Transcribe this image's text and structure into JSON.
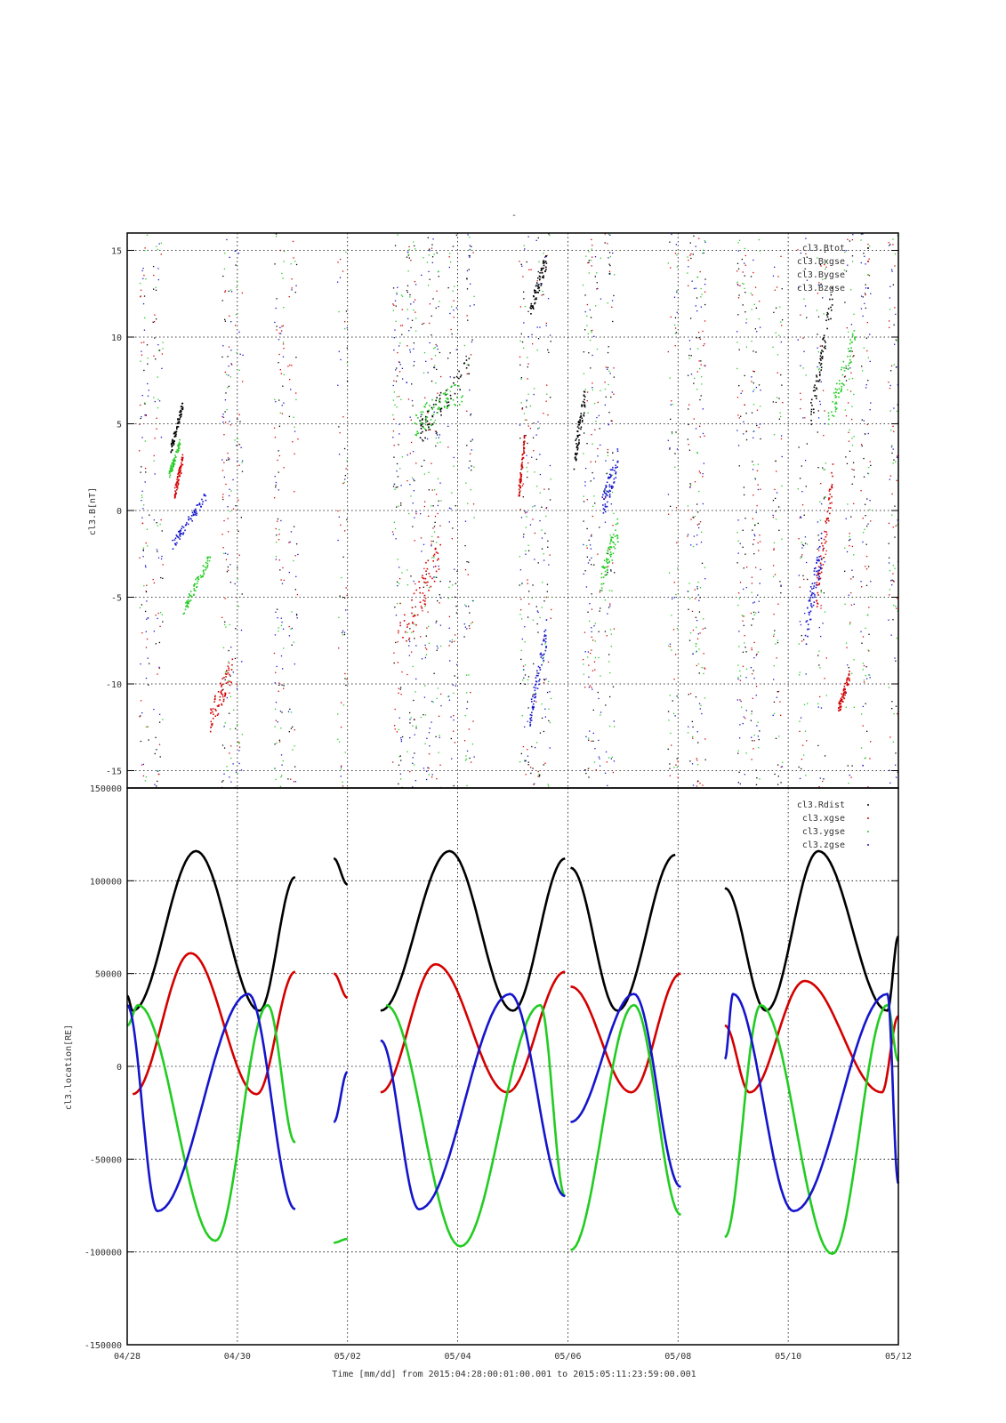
{
  "figure": {
    "title": "-",
    "xlabel": "Time [mm/dd]  from 2015:04:28:00:01:00.001  to  2015:05:11:23:59:00.001",
    "x_tick_labels": [
      "04/28",
      "04/30",
      "05/02",
      "05/04",
      "05/06",
      "05/08",
      "05/10",
      "05/12"
    ]
  },
  "colors": {
    "black": "#000000",
    "red": "#d40000",
    "green": "#22cc22",
    "blue": "#1515cc",
    "grid": "#000000",
    "frame": "#000000"
  },
  "chart_data": [
    {
      "type": "scatter",
      "title": "-",
      "ylabel": "cl3.B[nT]",
      "xlabel": "",
      "xlim": [
        0,
        14
      ],
      "x_unit": "days from 04/28",
      "ylim": [
        -16,
        16
      ],
      "yticks": [
        -15,
        -10,
        -5,
        0,
        5,
        10,
        15
      ],
      "ytick_labels": [
        "-15",
        "-10",
        "-5",
        "0",
        "5",
        "10",
        "15"
      ],
      "grid": true,
      "legend_position": "top-right",
      "series": [
        {
          "name": "cl3.Btot",
          "color": "black",
          "values_note": "",
          "segments": [
            [
              0.78,
              1.0,
              3.5,
              6.2,
              0.6
            ],
            [
              5.3,
              6.2,
              4.5,
              8.5,
              1.5
            ],
            [
              8.1,
              8.3,
              3.0,
              6.5,
              1.5
            ],
            [
              12.4,
              12.8,
              5.5,
              12.5,
              1.5
            ],
            [
              7.3,
              7.6,
              11.5,
              14.5,
              1.0
            ]
          ]
        },
        {
          "name": "cl3.Bxgse",
          "color": "red",
          "segments": [
            [
              0.85,
              1.0,
              1.0,
              3.0,
              0.8
            ],
            [
              1.5,
              1.9,
              -12.0,
              -9.0,
              1.5
            ],
            [
              4.9,
              5.7,
              -8.0,
              -2.0,
              2.5
            ],
            [
              7.1,
              7.2,
              1.0,
              4.0,
              1.0
            ],
            [
              12.5,
              12.8,
              -5.0,
              2.0,
              2.0
            ],
            [
              12.9,
              13.1,
              -11.5,
              -9.5,
              0.8
            ]
          ]
        },
        {
          "name": "cl3.Bygse",
          "color": "green",
          "segments": [
            [
              0.75,
              0.95,
              2.0,
              4.0,
              0.6
            ],
            [
              1.0,
              1.5,
              -5.8,
              -2.5,
              0.7
            ],
            [
              5.2,
              6.1,
              5.0,
              7.0,
              1.5
            ],
            [
              8.6,
              8.9,
              -4.0,
              -1.0,
              1.5
            ],
            [
              12.7,
              13.2,
              5.0,
              10.0,
              1.5
            ]
          ]
        },
        {
          "name": "cl3.Bzgse",
          "color": "blue",
          "segments": [
            [
              0.8,
              1.45,
              -2.0,
              1.0,
              0.6
            ],
            [
              7.3,
              7.6,
              -12.0,
              -7.0,
              1.5
            ],
            [
              8.6,
              8.9,
              0.0,
              3.0,
              1.5
            ],
            [
              12.3,
              12.6,
              -7.0,
              -2.0,
              2.0
            ]
          ]
        }
      ]
    },
    {
      "type": "scatter",
      "title": "",
      "ylabel": "cl3.location[RE]",
      "xlabel": "Time [mm/dd]  from 2015:04:28:00:01:00.001  to  2015:05:11:23:59:00.001",
      "xlim": [
        0,
        14
      ],
      "x_unit": "days from 04/28",
      "ylim": [
        -150000,
        150000
      ],
      "yticks": [
        -150000,
        -100000,
        -50000,
        0,
        50000,
        100000,
        150000
      ],
      "ytick_labels": [
        "-150000",
        "-100000",
        "-50000",
        "0",
        "50000",
        "100000",
        "150000"
      ],
      "grid": true,
      "legend_position": "top-right",
      "orbit_period_days": 2.7,
      "coverage_intervals": [
        [
          0.0,
          3.05
        ],
        [
          3.75,
          4.0
        ],
        [
          4.6,
          7.95
        ],
        [
          8.05,
          10.05
        ],
        [
          10.85,
          14.0
        ]
      ],
      "series": [
        {
          "name": "cl3.Rdist",
          "color": "black",
          "max": 116000,
          "min": 30000
        },
        {
          "name": "cl3.xgse",
          "color": "red",
          "max": 61000,
          "min": -15000
        },
        {
          "name": "cl3.ygse",
          "color": "green",
          "max": 33000,
          "min": -101000
        },
        {
          "name": "cl3.zgse",
          "color": "blue",
          "max": 39000,
          "min": -78000
        }
      ],
      "sample_points": {
        "cl3.Rdist": [
          [
            0.0,
            38000
          ],
          [
            0.1,
            30000
          ],
          [
            1.25,
            116000
          ],
          [
            2.4,
            30000
          ],
          [
            3.05,
            102000
          ],
          [
            3.75,
            112000
          ],
          [
            4.0,
            98000
          ],
          [
            4.6,
            30000
          ],
          [
            5.85,
            116000
          ],
          [
            7.0,
            30000
          ],
          [
            7.95,
            112000
          ],
          [
            8.05,
            107000
          ],
          [
            8.9,
            30000
          ],
          [
            9.95,
            114000
          ],
          [
            10.85,
            96000
          ],
          [
            11.6,
            30000
          ],
          [
            12.55,
            116000
          ],
          [
            13.8,
            30000
          ],
          [
            14.0,
            70000
          ]
        ],
        "cl3.xgse": [
          [
            0.1,
            -15000
          ],
          [
            1.15,
            61000
          ],
          [
            2.35,
            -15000
          ],
          [
            3.05,
            51000
          ],
          [
            3.75,
            50000
          ],
          [
            4.0,
            37000
          ],
          [
            4.6,
            -14000
          ],
          [
            5.6,
            55000
          ],
          [
            6.9,
            -14000
          ],
          [
            7.95,
            51000
          ],
          [
            8.05,
            43000
          ],
          [
            9.15,
            -14000
          ],
          [
            10.05,
            50000
          ],
          [
            10.85,
            22000
          ],
          [
            11.3,
            -14000
          ],
          [
            12.3,
            46000
          ],
          [
            13.7,
            -14000
          ],
          [
            14.0,
            27000
          ]
        ],
        "cl3.ygse": [
          [
            0.0,
            22000
          ],
          [
            0.2,
            33000
          ],
          [
            1.6,
            -94000
          ],
          [
            2.55,
            33000
          ],
          [
            3.05,
            -41000
          ],
          [
            3.75,
            -95000
          ],
          [
            4.0,
            -93000
          ],
          [
            4.7,
            33000
          ],
          [
            6.05,
            -97000
          ],
          [
            7.5,
            33000
          ],
          [
            7.95,
            -70000
          ],
          [
            8.05,
            -99000
          ],
          [
            9.2,
            33000
          ],
          [
            10.05,
            -80000
          ],
          [
            10.85,
            -92000
          ],
          [
            11.5,
            33000
          ],
          [
            12.8,
            -101000
          ],
          [
            13.8,
            33000
          ],
          [
            14.0,
            3000
          ]
        ],
        "cl3.zgse": [
          [
            0.0,
            33000
          ],
          [
            0.55,
            -78000
          ],
          [
            2.2,
            39000
          ],
          [
            3.05,
            -77000
          ],
          [
            3.75,
            -30000
          ],
          [
            4.0,
            -3000
          ],
          [
            4.6,
            14000
          ],
          [
            5.3,
            -77000
          ],
          [
            6.95,
            39000
          ],
          [
            7.95,
            -70000
          ],
          [
            8.05,
            -30000
          ],
          [
            9.2,
            39000
          ],
          [
            10.05,
            -65000
          ],
          [
            10.85,
            4000
          ],
          [
            11.0,
            39000
          ],
          [
            12.1,
            -78000
          ],
          [
            13.8,
            39000
          ],
          [
            14.0,
            -63000
          ]
        ]
      }
    }
  ],
  "legends": {
    "top": [
      "cl3.Btot",
      "cl3.Bxgse",
      "cl3.Bygse",
      "cl3.Bzgse"
    ],
    "bottom": [
      "cl3.Rdist",
      "cl3.xgse",
      "cl3.ygse",
      "cl3.zgse"
    ]
  }
}
